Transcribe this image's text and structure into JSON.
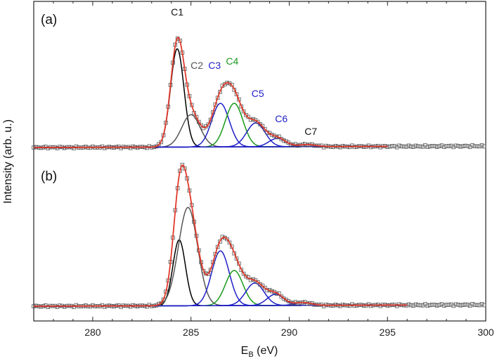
{
  "chart_data": {
    "type": "line",
    "title": "",
    "xlabel_main": "E",
    "xlabel_sub": "B",
    "xlabel_unit": " (eV)",
    "ylabel": "Intensity (arb. u.)",
    "xlim": [
      277,
      300
    ],
    "ylim": [
      0,
      1
    ],
    "x_ticks": [
      280,
      285,
      290,
      295,
      300
    ],
    "x_tick_labels": [
      "280",
      "285",
      "290",
      "295",
      "300"
    ],
    "colors": {
      "C1": "#000000",
      "C2": "#555555",
      "C3": "#1f1fc8",
      "C4": "#1a9a1a",
      "C5": "#1f1fc8",
      "C6": "#1f1fc8",
      "C7": "#1f1fc8",
      "envelope": "#e0392b",
      "data": "#555555"
    },
    "panels": [
      {
        "label": "(a)",
        "baseline": 0.02,
        "baseline_end": 0.03,
        "data_range": [
          277,
          300
        ],
        "fit_range": [
          277,
          295
        ],
        "peaks": [
          {
            "name": "C1",
            "center": 284.3,
            "height": 0.7,
            "fwhm": 0.8
          },
          {
            "name": "C2",
            "center": 285.0,
            "height": 0.23,
            "fwhm": 1.1
          },
          {
            "name": "C3",
            "center": 286.5,
            "height": 0.31,
            "fwhm": 1.05
          },
          {
            "name": "C4",
            "center": 287.2,
            "height": 0.31,
            "fwhm": 1.05
          },
          {
            "name": "C5",
            "center": 288.3,
            "height": 0.17,
            "fwhm": 1.1
          },
          {
            "name": "C6",
            "center": 289.4,
            "height": 0.06,
            "fwhm": 1.0
          },
          {
            "name": "C7",
            "center": 290.9,
            "height": 0.015,
            "fwhm": 1.0
          }
        ],
        "peak_labels": [
          {
            "text": "C1",
            "x": 284.3,
            "y": 0.96,
            "color": "#111111"
          },
          {
            "text": "C2",
            "x": 285.3,
            "y": 0.58,
            "color": "#555555"
          },
          {
            "text": "C3",
            "x": 286.2,
            "y": 0.58,
            "color": "#1f1fc8"
          },
          {
            "text": "C4",
            "x": 287.1,
            "y": 0.61,
            "color": "#1a9a1a"
          },
          {
            "text": "C5",
            "x": 288.4,
            "y": 0.38,
            "color": "#1f1fc8"
          },
          {
            "text": "C6",
            "x": 289.6,
            "y": 0.2,
            "color": "#1f1fc8"
          },
          {
            "text": "C7",
            "x": 291.1,
            "y": 0.11,
            "color": "#111111"
          }
        ]
      },
      {
        "label": "(b)",
        "baseline": 0.02,
        "baseline_end": 0.03,
        "data_range": [
          277,
          300
        ],
        "fit_range": [
          277,
          296
        ],
        "peaks": [
          {
            "name": "C1",
            "center": 284.4,
            "height": 0.47,
            "fwhm": 0.75
          },
          {
            "name": "C2",
            "center": 284.85,
            "height": 0.7,
            "fwhm": 1.15
          },
          {
            "name": "C3",
            "center": 286.5,
            "height": 0.39,
            "fwhm": 1.05
          },
          {
            "name": "C4",
            "center": 287.2,
            "height": 0.25,
            "fwhm": 1.05
          },
          {
            "name": "C5",
            "center": 288.25,
            "height": 0.16,
            "fwhm": 1.1
          },
          {
            "name": "C6",
            "center": 289.3,
            "height": 0.08,
            "fwhm": 1.0
          },
          {
            "name": "C7",
            "center": 290.7,
            "height": 0.02,
            "fwhm": 1.0
          }
        ],
        "peak_labels": []
      }
    ]
  }
}
